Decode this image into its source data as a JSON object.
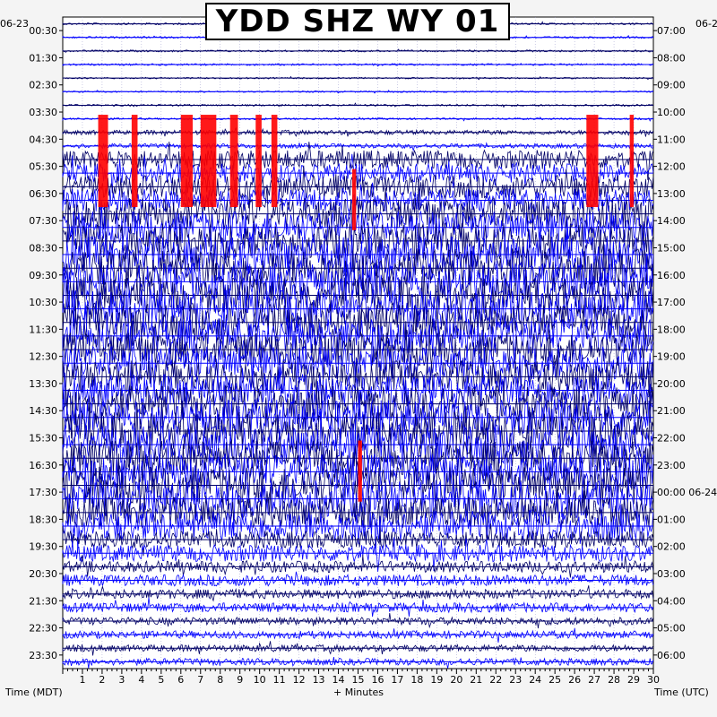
{
  "title": "YDD SHZ WY 01",
  "left_axis": {
    "date": "06-23",
    "label": "Time (MDT)",
    "ticks": [
      "00:30",
      "01:30",
      "02:30",
      "03:30",
      "04:30",
      "05:30",
      "06:30",
      "07:30",
      "08:30",
      "09:30",
      "10:30",
      "11:30",
      "12:30",
      "13:30",
      "14:30",
      "15:30",
      "16:30",
      "17:30",
      "18:30",
      "19:30",
      "20:30",
      "21:30",
      "22:30",
      "23:30"
    ]
  },
  "right_axis": {
    "date": "06-2",
    "label": "Time (UTC)",
    "ticks": [
      "07:00",
      "08:00",
      "09:00",
      "10:00",
      "11:00",
      "12:00",
      "13:00",
      "14:00",
      "15:00",
      "16:00",
      "17:00",
      "18:00",
      "19:00",
      "20:00",
      "21:00",
      "22:00",
      "23:00",
      "00:00 06-24",
      "01:00",
      "02:00",
      "03:00",
      "04:00",
      "05:00",
      "06:00"
    ]
  },
  "x_axis": {
    "label": "+ Minutes",
    "ticks": [
      "1",
      "2",
      "3",
      "4",
      "5",
      "6",
      "7",
      "8",
      "9",
      "10",
      "11",
      "12",
      "13",
      "14",
      "15",
      "16",
      "17",
      "18",
      "19",
      "20",
      "21",
      "22",
      "23",
      "24",
      "25",
      "26",
      "27",
      "28",
      "29",
      "30"
    ]
  },
  "colors": {
    "trace_dark": "#000066",
    "trace_blue": "#0000ff",
    "clipped": "#ff0000",
    "grid": "#00008b",
    "background": "#f4f4f4"
  },
  "chart_data": {
    "type": "helicorder",
    "station": "YDD",
    "channel": "SHZ",
    "network": "WY",
    "location": "01",
    "minutes_per_line": 30,
    "lines": 48,
    "xlim": [
      0,
      30
    ],
    "trace_colors_alternate": [
      "#000066",
      "#0000ff"
    ],
    "activity_by_hour_mdt": [
      0.05,
      0.05,
      0.04,
      0.05,
      0.12,
      0.5,
      0.6,
      0.85,
      0.95,
      1.0,
      1.0,
      0.95,
      0.9,
      0.85,
      0.95,
      1.0,
      0.95,
      1.0,
      0.8,
      0.45,
      0.3,
      0.25,
      0.2,
      0.18
    ],
    "clipped_events": [
      {
        "hour": "04:30",
        "start_min": 1.8,
        "end_min": 2.3
      },
      {
        "hour": "04:30",
        "start_min": 3.5,
        "end_min": 3.8
      },
      {
        "hour": "04:30",
        "start_min": 6.0,
        "end_min": 6.6
      },
      {
        "hour": "04:30",
        "start_min": 7.0,
        "end_min": 7.8
      },
      {
        "hour": "04:30",
        "start_min": 8.5,
        "end_min": 8.9
      },
      {
        "hour": "04:30",
        "start_min": 9.8,
        "end_min": 10.1
      },
      {
        "hour": "04:30",
        "start_min": 10.6,
        "end_min": 10.9
      },
      {
        "hour": "04:30",
        "start_min": 26.6,
        "end_min": 27.2
      },
      {
        "hour": "04:30",
        "start_min": 28.8,
        "end_min": 29.0
      },
      {
        "hour": "06:30",
        "start_min": 14.7,
        "end_min": 14.9
      },
      {
        "hour": "16:30",
        "start_min": 15.0,
        "end_min": 15.2
      }
    ]
  }
}
